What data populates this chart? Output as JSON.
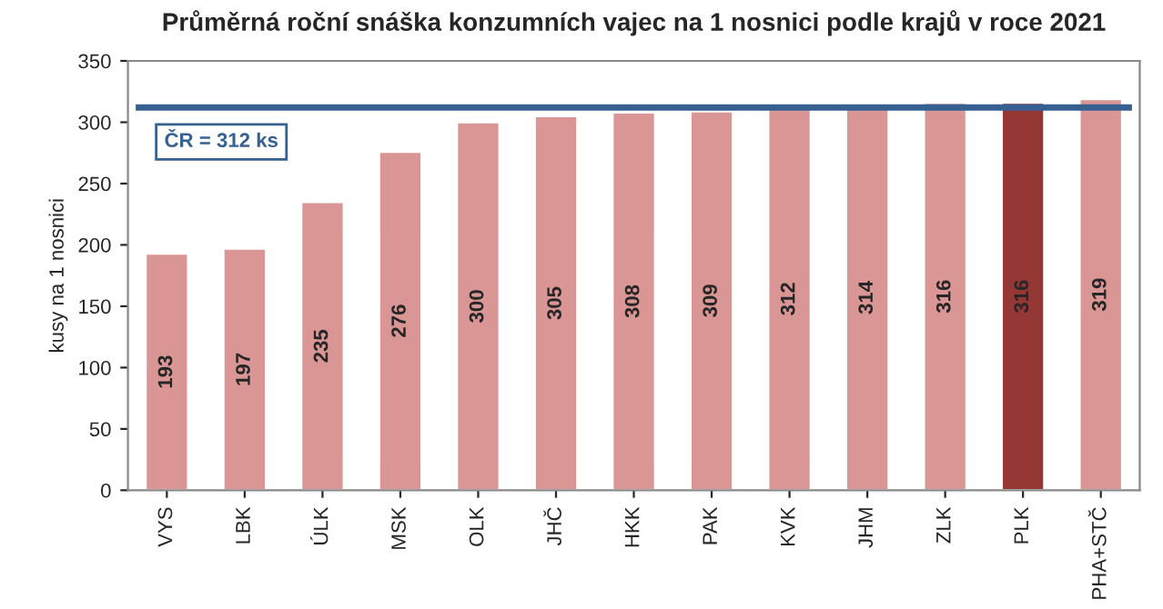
{
  "chart_data": {
    "type": "bar",
    "title": "Průměrná roční snáška konzumních vajec na 1 nosnici podle krajů v roce 2021",
    "ylabel": "kusy na 1 nosnici",
    "categories": [
      "VYS",
      "LBK",
      "ÚLK",
      "MSK",
      "OLK",
      "JHČ",
      "HKK",
      "PAK",
      "KVK",
      "JHM",
      "ZLK",
      "PLK",
      "PHA+STČ"
    ],
    "values": [
      193,
      197,
      235,
      276,
      300,
      305,
      308,
      309,
      312,
      314,
      316,
      316,
      319
    ],
    "colors": [
      "#d99694",
      "#d99694",
      "#d99694",
      "#d99694",
      "#d99694",
      "#d99694",
      "#d99694",
      "#d99694",
      "#d99694",
      "#d99694",
      "#d99694",
      "#953735",
      "#d99694"
    ],
    "ylim": [
      0,
      350
    ],
    "yticks": [
      0,
      50,
      100,
      150,
      200,
      250,
      300,
      350
    ],
    "grid": false,
    "data_labels": true,
    "ref_lines": [
      {
        "axis": "y",
        "value": 312,
        "label": "ČR = 312 ks",
        "color": "#376092"
      }
    ]
  }
}
